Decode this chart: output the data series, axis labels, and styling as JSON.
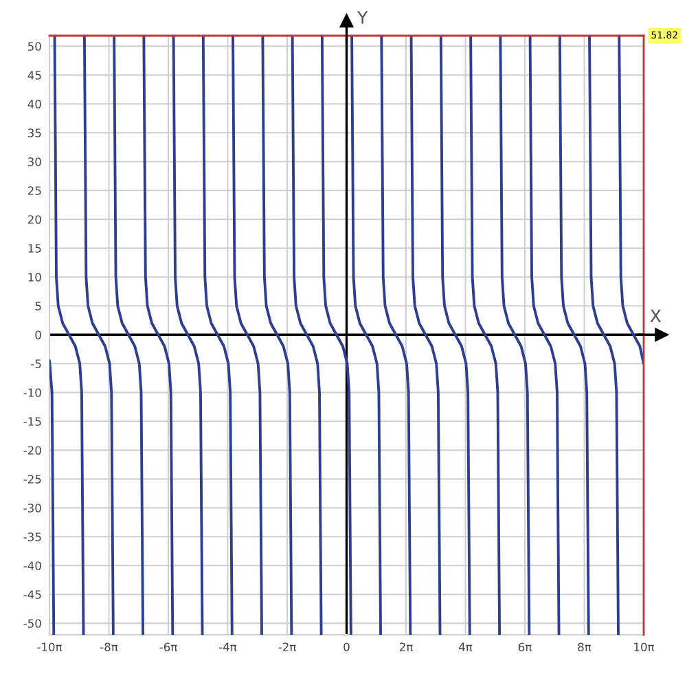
{
  "chart_data": {
    "type": "line",
    "xlabel": "X",
    "ylabel": "Y",
    "xlim": [
      -31.416,
      31.416
    ],
    "ylim": [
      -52,
      51.82
    ],
    "xticks": [
      {
        "value": -31.416,
        "label": "-10π"
      },
      {
        "value": -25.133,
        "label": "-8π"
      },
      {
        "value": -18.85,
        "label": "-6π"
      },
      {
        "value": -12.566,
        "label": "-4π"
      },
      {
        "value": -6.283,
        "label": "-2π"
      },
      0,
      {
        "value": 6.283,
        "label": "2π"
      },
      {
        "value": 12.566,
        "label": "4π"
      },
      {
        "value": 18.85,
        "label": "6π"
      },
      {
        "value": 25.133,
        "label": "8π"
      },
      {
        "value": 31.416,
        "label": "10π"
      }
    ],
    "yticks": [
      -50,
      -45,
      -40,
      -35,
      -30,
      -25,
      -20,
      -15,
      -10,
      -5,
      0,
      5,
      10,
      15,
      20,
      25,
      30,
      35,
      40,
      45,
      50
    ],
    "grid": true,
    "marker": "none",
    "line_style": "solid",
    "ref_lines": [
      {
        "axis": "y",
        "value": 51.82,
        "label": "51.82",
        "color": "#c83232"
      },
      {
        "axis": "x",
        "value": 31.416,
        "color": "#c83232"
      }
    ],
    "series": [
      {
        "color": "#2e3f8f",
        "x": [
          -31.41,
          -31.15,
          -30.96
        ],
        "values": [
          -4.5,
          -10,
          -52
        ]
      },
      {
        "color": "#2e3f8f",
        "x": [
          -30.87,
          -30.69,
          -30.49,
          -30.02,
          -29.35,
          -28.68,
          -28.21,
          -28.01,
          -27.82
        ],
        "values": [
          51.82,
          10,
          5,
          2,
          0,
          -2,
          -5,
          -10,
          -52
        ]
      },
      {
        "color": "#2e3f8f",
        "x": [
          -27.72,
          -27.54,
          -27.34,
          -26.87,
          -26.2,
          -25.53,
          -25.06,
          -24.86,
          -24.67
        ],
        "values": [
          51.82,
          10,
          5,
          2,
          0,
          -2,
          -5,
          -10,
          -52
        ]
      },
      {
        "color": "#2e3f8f",
        "x": [
          -24.58,
          -24.4,
          -24.2,
          -23.73,
          -23.06,
          -22.39,
          -21.92,
          -21.72,
          -21.53
        ],
        "values": [
          51.82,
          10,
          5,
          2,
          0,
          -2,
          -5,
          -10,
          -52
        ]
      },
      {
        "color": "#2e3f8f",
        "x": [
          -21.44,
          -21.26,
          -21.06,
          -20.59,
          -19.92,
          -19.25,
          -18.78,
          -18.58,
          -18.39
        ],
        "values": [
          51.82,
          10,
          5,
          2,
          0,
          -2,
          -5,
          -10,
          -52
        ]
      },
      {
        "color": "#2e3f8f",
        "x": [
          -18.3,
          -18.12,
          -17.92,
          -17.45,
          -16.78,
          -16.11,
          -15.64,
          -15.44,
          -15.25
        ],
        "values": [
          51.82,
          10,
          5,
          2,
          0,
          -2,
          -5,
          -10,
          -52
        ]
      },
      {
        "color": "#2e3f8f",
        "x": [
          -15.16,
          -14.98,
          -14.78,
          -14.31,
          -13.64,
          -12.97,
          -12.5,
          -12.3,
          -12.11
        ],
        "values": [
          51.82,
          10,
          5,
          2,
          0,
          -2,
          -5,
          -10,
          -52
        ]
      },
      {
        "color": "#2e3f8f",
        "x": [
          -12.02,
          -11.84,
          -11.64,
          -11.17,
          -10.5,
          -9.83,
          -9.36,
          -9.16,
          -8.97
        ],
        "values": [
          51.82,
          10,
          5,
          2,
          0,
          -2,
          -5,
          -10,
          -52
        ]
      },
      {
        "color": "#2e3f8f",
        "x": [
          -8.87,
          -8.69,
          -8.49,
          -8.02,
          -7.35,
          -6.68,
          -6.21,
          -6.01,
          -5.82
        ],
        "values": [
          51.82,
          10,
          5,
          2,
          0,
          -2,
          -5,
          -10,
          -52
        ]
      },
      {
        "color": "#2e3f8f",
        "x": [
          -5.73,
          -5.55,
          -5.35,
          -4.88,
          -4.21,
          -3.54,
          -3.07,
          -2.87,
          -2.68
        ],
        "values": [
          51.82,
          10,
          5,
          2,
          0,
          -2,
          -5,
          -10,
          -52
        ]
      },
      {
        "color": "#2e3f8f",
        "x": [
          -2.59,
          -2.41,
          -2.21,
          -1.74,
          -1.07,
          -0.4,
          0.07,
          0.27,
          0.46
        ],
        "values": [
          51.82,
          10,
          5,
          2,
          0,
          -2,
          -5,
          -10,
          -52
        ]
      },
      {
        "color": "#2e3f8f",
        "x": [
          0.55,
          0.73,
          0.93,
          1.4,
          2.07,
          2.74,
          3.21,
          3.41,
          3.6
        ],
        "values": [
          51.82,
          10,
          5,
          2,
          0,
          -2,
          -5,
          -10,
          -52
        ]
      },
      {
        "color": "#2e3f8f",
        "x": [
          3.69,
          3.87,
          4.07,
          4.54,
          5.21,
          5.88,
          6.35,
          6.55,
          6.74
        ],
        "values": [
          51.82,
          10,
          5,
          2,
          0,
          -2,
          -5,
          -10,
          -52
        ]
      },
      {
        "color": "#2e3f8f",
        "x": [
          6.83,
          7.01,
          7.21,
          7.68,
          8.35,
          9.02,
          9.49,
          9.69,
          9.88
        ],
        "values": [
          51.82,
          10,
          5,
          2,
          0,
          -2,
          -5,
          -10,
          -52
        ]
      },
      {
        "color": "#2e3f8f",
        "x": [
          9.97,
          10.15,
          10.35,
          10.82,
          11.49,
          12.16,
          12.63,
          12.83,
          13.02
        ],
        "values": [
          51.82,
          10,
          5,
          2,
          0,
          -2,
          -5,
          -10,
          -52
        ]
      },
      {
        "color": "#2e3f8f",
        "x": [
          13.12,
          13.3,
          13.5,
          13.97,
          14.64,
          15.31,
          15.78,
          15.98,
          16.17
        ],
        "values": [
          51.82,
          10,
          5,
          2,
          0,
          -2,
          -5,
          -10,
          -52
        ]
      },
      {
        "color": "#2e3f8f",
        "x": [
          16.26,
          16.44,
          16.64,
          17.11,
          17.78,
          18.45,
          18.92,
          19.12,
          19.31
        ],
        "values": [
          51.82,
          10,
          5,
          2,
          0,
          -2,
          -5,
          -10,
          -52
        ]
      },
      {
        "color": "#2e3f8f",
        "x": [
          19.4,
          19.58,
          19.78,
          20.25,
          20.92,
          21.59,
          22.06,
          22.26,
          22.45
        ],
        "values": [
          51.82,
          10,
          5,
          2,
          0,
          -2,
          -5,
          -10,
          -52
        ]
      },
      {
        "color": "#2e3f8f",
        "x": [
          22.54,
          22.72,
          22.92,
          23.39,
          24.06,
          24.73,
          25.2,
          25.4,
          25.59
        ],
        "values": [
          51.82,
          10,
          5,
          2,
          0,
          -2,
          -5,
          -10,
          -52
        ]
      },
      {
        "color": "#2e3f8f",
        "x": [
          25.68,
          25.86,
          26.06,
          26.53,
          27.2,
          27.87,
          28.34,
          28.54,
          28.73
        ],
        "values": [
          51.82,
          10,
          5,
          2,
          0,
          -2,
          -5,
          -10,
          -52
        ]
      },
      {
        "color": "#2e3f8f",
        "x": [
          28.82,
          29.0,
          29.2,
          29.67,
          30.34,
          31.01,
          31.41
        ],
        "values": [
          51.82,
          10,
          5,
          2,
          0,
          -2,
          -5
        ]
      }
    ]
  }
}
